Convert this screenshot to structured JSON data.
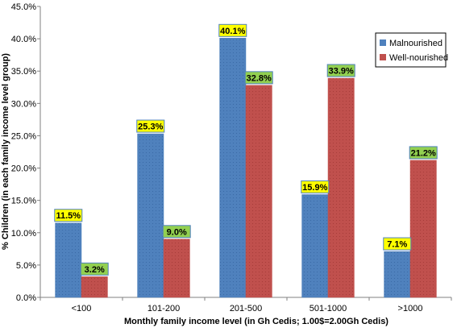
{
  "chart_data": {
    "type": "bar",
    "categories": [
      "<100",
      "101-200",
      "201-500",
      "501-1000",
      ">1000"
    ],
    "series": [
      {
        "name": "Malnourished",
        "color": "#4f81bd",
        "label_bg": "#ffff00",
        "values": [
          11.5,
          25.3,
          40.1,
          15.9,
          7.1
        ],
        "labels": [
          "11.5%",
          "25.3%",
          "40.1%",
          "15.9%",
          "7.1%"
        ]
      },
      {
        "name": "Well-nourished",
        "color": "#c0504d",
        "label_bg": "#92d050",
        "values": [
          3.2,
          9.0,
          32.8,
          33.9,
          21.2
        ],
        "labels": [
          "3.2%",
          "9.0%",
          "32.8%",
          "33.9%",
          "21.2%"
        ]
      }
    ],
    "xlabel": "Monthly family income level (in Gh Cedis; 1.00$=2.00Gh Cedis)",
    "ylabel": "% Children (in each family income level group)",
    "ylim": [
      0,
      45
    ],
    "yticks": [
      0,
      5,
      10,
      15,
      20,
      25,
      30,
      35,
      40,
      45
    ],
    "ytick_labels": [
      "0.0%",
      "5.0%",
      "10.0%",
      "15.0%",
      "20.0%",
      "25.0%",
      "30.0%",
      "35.0%",
      "40.0%",
      "45.0%"
    ],
    "grid": false,
    "legend_position": "top-right"
  }
}
